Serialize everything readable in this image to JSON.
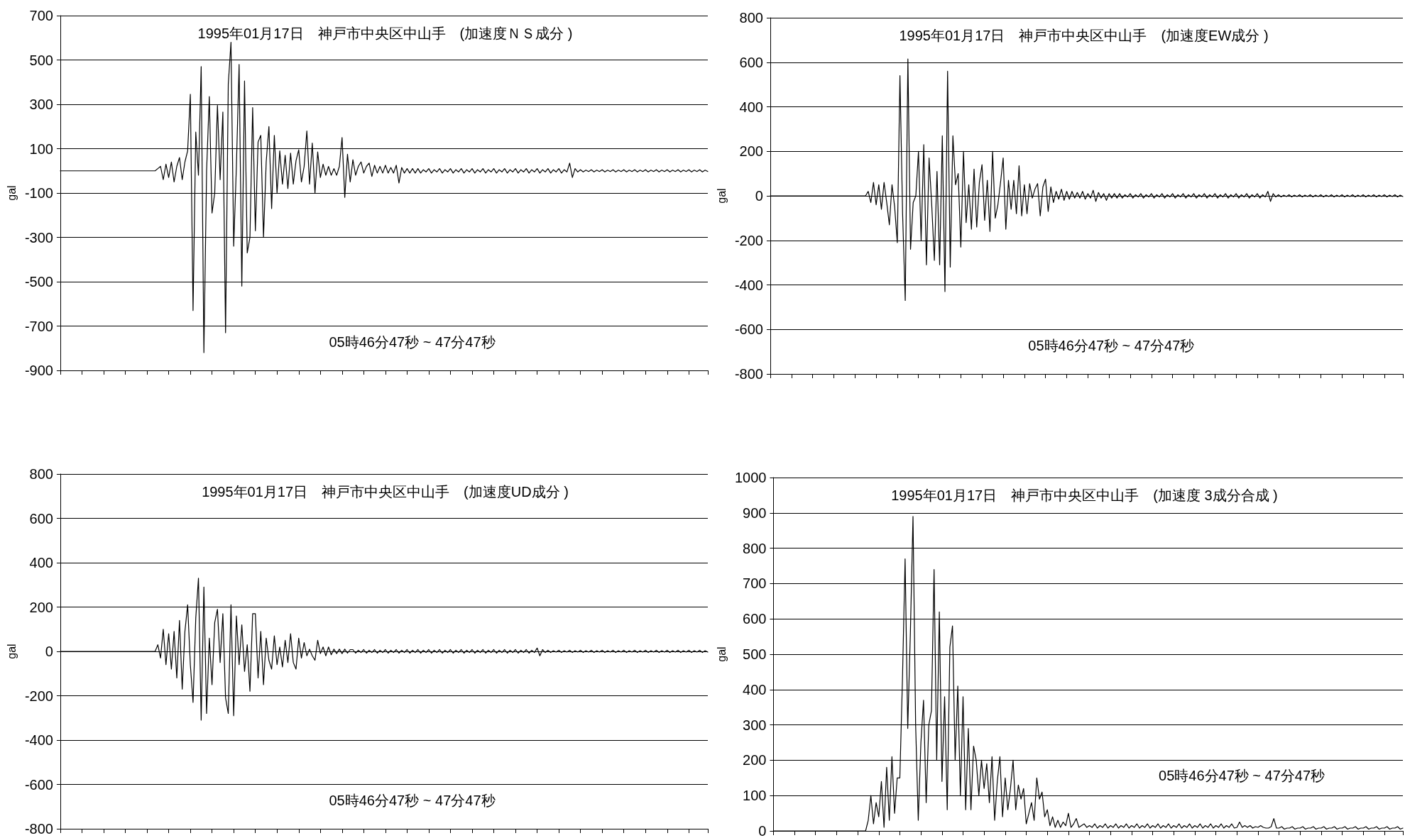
{
  "chart_data": [
    {
      "type": "line",
      "title": "1995年01月17日　神戸市中央区中山手　(加速度ＮＳ成分 )",
      "ylabel": "gal",
      "annotations": [
        "05時46分47秒 ~ 47分47秒"
      ],
      "grid": "y",
      "categories": [
        null,
        null,
        null,
        null,
        null,
        null,
        null,
        null,
        null,
        null,
        null,
        null,
        null,
        null,
        null,
        null,
        null,
        null,
        null,
        null,
        null,
        null,
        null,
        null,
        null,
        null,
        null,
        null,
        null,
        null,
        null,
        null,
        null,
        null,
        null,
        null,
        null,
        null,
        null,
        null,
        null,
        null,
        null,
        null,
        null,
        null,
        null,
        null,
        null,
        null,
        null,
        null,
        null,
        null,
        null,
        null,
        null,
        null,
        null,
        null,
        null,
        null,
        null,
        null,
        null,
        null,
        null,
        null,
        null,
        null,
        null,
        null,
        null,
        null,
        null,
        null,
        null,
        null,
        null,
        null,
        null,
        null,
        null,
        null,
        null,
        null,
        null,
        null,
        null,
        null,
        null,
        null,
        null,
        null,
        null,
        null,
        null,
        null,
        null,
        null,
        null,
        null,
        null,
        null,
        null,
        null,
        null,
        null,
        null,
        null,
        null,
        null,
        null,
        null,
        null,
        null,
        null,
        null,
        null,
        null,
        null,
        null,
        null,
        null,
        null,
        null,
        null,
        null,
        null,
        null,
        null,
        null,
        null,
        null,
        null,
        null,
        null,
        null,
        null,
        null,
        null,
        null,
        null,
        null,
        null,
        null,
        null,
        null,
        null,
        null,
        null,
        null,
        null,
        null,
        null,
        null,
        null,
        null,
        null,
        null,
        null,
        null,
        null,
        null,
        null,
        null,
        null,
        null,
        null,
        null,
        null,
        null,
        null,
        null,
        null,
        null,
        null,
        null,
        null,
        null,
        null,
        null,
        null,
        null,
        null,
        null,
        null,
        null,
        null,
        null,
        null,
        null,
        null,
        null,
        null,
        null,
        null,
        null,
        null,
        null,
        null,
        null,
        null,
        null,
        null,
        null,
        null,
        null,
        null,
        null,
        null,
        null,
        null,
        null,
        null,
        null,
        null,
        null,
        null,
        null,
        null,
        null,
        null,
        null,
        null,
        null,
        null,
        null,
        null,
        null,
        null,
        null,
        null,
        null,
        null,
        null,
        null,
        null,
        null,
        null
      ],
      "ylim": [
        -900,
        700
      ],
      "yticks": [
        -900,
        -700,
        -500,
        -300,
        -100,
        100,
        300,
        500,
        700
      ],
      "series": [
        {
          "color": "#000000",
          "values": [
            0,
            0,
            0,
            0,
            0,
            0,
            0,
            0,
            0,
            0,
            0,
            0,
            0,
            0,
            0,
            0,
            0,
            0,
            0,
            0,
            0,
            0,
            0,
            0,
            0,
            0,
            0,
            0,
            0,
            0,
            0,
            0,
            0,
            0,
            0,
            0,
            10,
            20,
            -40,
            30,
            -30,
            40,
            -50,
            20,
            60,
            -40,
            40,
            90,
            345,
            -630,
            175,
            -20,
            470,
            -820,
            0,
            335,
            -190,
            -100,
            295,
            -40,
            265,
            -730,
            390,
            580,
            -340,
            20,
            480,
            -520,
            405,
            -370,
            -300,
            285,
            -270,
            130,
            160,
            -300,
            40,
            200,
            -170,
            160,
            -100,
            90,
            -60,
            70,
            -80,
            80,
            -60,
            45,
            95,
            -50,
            20,
            180,
            -60,
            125,
            -100,
            85,
            -30,
            30,
            -20,
            20,
            -20,
            10,
            -20,
            20,
            150,
            -120,
            75,
            -50,
            50,
            -20,
            20,
            40,
            -10,
            20,
            35,
            -25,
            25,
            -10,
            20,
            -10,
            25,
            -10,
            15,
            -10,
            25,
            -55,
            15,
            -10,
            10,
            -10,
            10,
            -10,
            10,
            -10,
            5,
            -5,
            10,
            -10,
            5,
            -5,
            10,
            -10,
            5,
            -5,
            10,
            -10,
            5,
            -5,
            10,
            -10,
            5,
            -5,
            10,
            -10,
            5,
            -5,
            10,
            -10,
            5,
            -5,
            10,
            -10,
            5,
            -5,
            10,
            -10,
            5,
            -5,
            10,
            -10,
            5,
            -5,
            10,
            -10,
            5,
            -5,
            10,
            -10,
            5,
            -5,
            10,
            -10,
            5,
            -5,
            10,
            -10,
            5,
            -5,
            35,
            -30,
            10,
            -5,
            5,
            -5,
            3,
            -3,
            5,
            -5,
            3,
            -3,
            5,
            -5,
            3,
            -3,
            5,
            -5,
            3,
            -3,
            5,
            -5,
            3,
            -3,
            5,
            -5,
            3,
            -3,
            5,
            -5,
            3,
            -3,
            5,
            -5,
            3,
            -3,
            5,
            -5,
            3,
            -3,
            5,
            -5,
            3,
            -3,
            5,
            -5,
            3,
            -3,
            5,
            -5,
            3,
            -3
          ]
        }
      ]
    },
    {
      "type": "line",
      "title": "1995年01月17日　神戸市中央区中山手　(加速度EW成分 )",
      "ylabel": "gal",
      "annotations": [
        "05時46分47秒 ~ 47分47秒"
      ],
      "grid": "y",
      "categories": [
        null,
        null,
        null,
        null,
        null,
        null,
        null,
        null,
        null,
        null,
        null,
        null,
        null,
        null,
        null,
        null,
        null,
        null,
        null,
        null,
        null,
        null,
        null,
        null,
        null,
        null,
        null,
        null,
        null,
        null,
        null,
        null,
        null,
        null,
        null,
        null,
        null,
        null,
        null,
        null,
        null,
        null,
        null,
        null,
        null,
        null,
        null,
        null,
        null,
        null,
        null,
        null,
        null,
        null,
        null,
        null,
        null,
        null,
        null,
        null,
        null,
        null,
        null,
        null,
        null,
        null,
        null,
        null,
        null,
        null,
        null,
        null,
        null,
        null,
        null,
        null,
        null,
        null,
        null,
        null,
        null,
        null,
        null,
        null,
        null,
        null,
        null,
        null,
        null,
        null,
        null,
        null,
        null,
        null,
        null,
        null,
        null,
        null,
        null,
        null,
        null,
        null,
        null,
        null,
        null,
        null,
        null,
        null,
        null,
        null,
        null,
        null,
        null,
        null,
        null,
        null,
        null,
        null,
        null,
        null,
        null,
        null,
        null,
        null,
        null,
        null,
        null,
        null,
        null,
        null,
        null,
        null,
        null,
        null,
        null,
        null,
        null,
        null,
        null,
        null,
        null,
        null,
        null,
        null,
        null,
        null,
        null,
        null,
        null,
        null,
        null,
        null,
        null,
        null,
        null,
        null,
        null,
        null,
        null,
        null,
        null,
        null,
        null,
        null,
        null,
        null,
        null,
        null,
        null,
        null,
        null,
        null,
        null,
        null,
        null,
        null,
        null,
        null,
        null,
        null,
        null,
        null,
        null,
        null,
        null,
        null,
        null,
        null,
        null,
        null,
        null,
        null,
        null,
        null,
        null,
        null,
        null,
        null,
        null,
        null,
        null,
        null,
        null,
        null,
        null,
        null,
        null,
        null,
        null,
        null,
        null,
        null,
        null,
        null,
        null,
        null,
        null,
        null,
        null,
        null,
        null,
        null,
        null,
        null,
        null,
        null,
        null,
        null,
        null,
        null,
        null,
        null,
        null,
        null,
        null,
        null,
        null,
        null,
        null,
        null
      ],
      "ylim": [
        -800,
        800
      ],
      "yticks": [
        -800,
        -600,
        -400,
        -200,
        0,
        200,
        400,
        600,
        800
      ],
      "series": [
        {
          "color": "#000000",
          "values": [
            0,
            0,
            0,
            0,
            0,
            0,
            0,
            0,
            0,
            0,
            0,
            0,
            0,
            0,
            0,
            0,
            0,
            0,
            0,
            0,
            0,
            0,
            0,
            0,
            0,
            0,
            0,
            0,
            0,
            0,
            0,
            0,
            0,
            0,
            0,
            0,
            0,
            20,
            -30,
            60,
            -40,
            50,
            -60,
            60,
            -30,
            -130,
            50,
            -50,
            -210,
            540,
            -80,
            -470,
            615,
            -240,
            -30,
            0,
            200,
            -200,
            230,
            -310,
            170,
            -40,
            -290,
            110,
            -310,
            270,
            -430,
            560,
            -320,
            270,
            50,
            100,
            -230,
            200,
            -120,
            50,
            -150,
            120,
            -140,
            60,
            140,
            -110,
            70,
            -160,
            200,
            -100,
            -40,
            60,
            170,
            -150,
            70,
            -60,
            70,
            -80,
            135,
            -90,
            50,
            -80,
            55,
            -10,
            30,
            55,
            -90,
            40,
            75,
            -70,
            40,
            -30,
            20,
            -15,
            30,
            -20,
            20,
            -15,
            20,
            -10,
            15,
            -10,
            20,
            -15,
            10,
            -10,
            25,
            -25,
            15,
            -10,
            10,
            -20,
            10,
            -10,
            10,
            -10,
            10,
            -10,
            5,
            -5,
            10,
            -10,
            5,
            -5,
            10,
            -10,
            5,
            -5,
            10,
            -10,
            5,
            -5,
            10,
            -10,
            5,
            -5,
            10,
            -10,
            5,
            -5,
            10,
            -10,
            5,
            -5,
            10,
            -10,
            5,
            -5,
            10,
            -10,
            5,
            -5,
            10,
            -10,
            5,
            -5,
            10,
            -10,
            5,
            -5,
            10,
            -10,
            5,
            -5,
            10,
            -10,
            5,
            -5,
            10,
            -10,
            5,
            -5,
            20,
            -25,
            10,
            -5,
            5,
            -5,
            3,
            -3,
            5,
            -5,
            3,
            -3,
            5,
            -5,
            3,
            -3,
            5,
            -5,
            3,
            -3,
            5,
            -5,
            3,
            -3,
            5,
            -5,
            3,
            -3,
            5,
            -5,
            3,
            -3,
            5,
            -5,
            3,
            -3,
            5,
            -5,
            3,
            -3,
            5,
            -5,
            3,
            -3,
            5,
            -5,
            3,
            -3,
            5,
            -5,
            3,
            -3
          ]
        }
      ]
    },
    {
      "type": "line",
      "title": "1995年01月17日　神戸市中央区中山手　(加速度UD成分 )",
      "ylabel": "gal",
      "annotations": [
        "05時46分47秒 ~ 47分47秒"
      ],
      "grid": "y",
      "categories": [
        null,
        null,
        null,
        null,
        null,
        null,
        null,
        null,
        null,
        null,
        null,
        null,
        null,
        null,
        null,
        null,
        null,
        null,
        null,
        null,
        null,
        null,
        null,
        null,
        null,
        null,
        null,
        null,
        null,
        null,
        null,
        null,
        null,
        null,
        null,
        null,
        null,
        null,
        null,
        null,
        null,
        null,
        null,
        null,
        null,
        null,
        null,
        null,
        null,
        null,
        null,
        null,
        null,
        null,
        null,
        null,
        null,
        null,
        null,
        null,
        null,
        null,
        null,
        null,
        null,
        null,
        null,
        null,
        null,
        null,
        null,
        null,
        null,
        null,
        null,
        null,
        null,
        null,
        null,
        null,
        null,
        null,
        null,
        null,
        null,
        null,
        null,
        null,
        null,
        null,
        null,
        null,
        null,
        null,
        null,
        null,
        null,
        null,
        null,
        null,
        null,
        null,
        null,
        null,
        null,
        null,
        null,
        null,
        null,
        null,
        null,
        null,
        null,
        null,
        null,
        null,
        null,
        null,
        null,
        null,
        null,
        null,
        null,
        null,
        null,
        null,
        null,
        null,
        null,
        null,
        null,
        null,
        null,
        null,
        null,
        null,
        null,
        null,
        null,
        null,
        null,
        null,
        null,
        null,
        null,
        null,
        null,
        null,
        null,
        null,
        null,
        null,
        null,
        null,
        null,
        null,
        null,
        null,
        null,
        null,
        null,
        null,
        null,
        null,
        null,
        null,
        null,
        null,
        null,
        null,
        null,
        null,
        null,
        null,
        null,
        null,
        null,
        null,
        null,
        null,
        null,
        null,
        null,
        null,
        null,
        null,
        null,
        null,
        null,
        null,
        null,
        null,
        null,
        null,
        null,
        null,
        null,
        null,
        null,
        null,
        null,
        null,
        null,
        null,
        null,
        null,
        null,
        null,
        null,
        null,
        null,
        null,
        null,
        null,
        null,
        null,
        null,
        null,
        null,
        null,
        null,
        null,
        null,
        null,
        null,
        null,
        null,
        null,
        null,
        null,
        null,
        null,
        null,
        null,
        null,
        null,
        null,
        null,
        null,
        null
      ],
      "ylim": [
        -800,
        800
      ],
      "yticks": [
        -800,
        -600,
        -400,
        -200,
        0,
        200,
        400,
        600,
        800
      ],
      "series": [
        {
          "color": "#000000",
          "values": [
            0,
            0,
            0,
            0,
            0,
            0,
            0,
            0,
            0,
            0,
            0,
            0,
            0,
            0,
            0,
            0,
            0,
            0,
            0,
            0,
            0,
            0,
            0,
            0,
            0,
            0,
            0,
            0,
            0,
            0,
            0,
            0,
            0,
            0,
            0,
            0,
            30,
            -30,
            100,
            -60,
            80,
            -80,
            90,
            -120,
            140,
            -170,
            90,
            210,
            -60,
            -230,
            150,
            330,
            -310,
            290,
            -280,
            60,
            -150,
            130,
            190,
            -50,
            170,
            -210,
            -280,
            210,
            -290,
            160,
            -60,
            120,
            -90,
            30,
            -180,
            170,
            170,
            -120,
            90,
            -150,
            60,
            -40,
            -80,
            70,
            -60,
            20,
            -70,
            50,
            -50,
            80,
            -50,
            -80,
            60,
            -30,
            40,
            -20,
            10,
            -20,
            -40,
            50,
            -10,
            20,
            -20,
            20,
            -15,
            10,
            -10,
            10,
            -10,
            10,
            -8,
            8,
            8,
            -8,
            5,
            -5,
            8,
            -8,
            5,
            -5,
            8,
            -8,
            5,
            -5,
            8,
            -8,
            5,
            -5,
            8,
            -8,
            5,
            -5,
            8,
            -8,
            5,
            -5,
            8,
            -8,
            5,
            -5,
            8,
            -8,
            5,
            -5,
            8,
            -8,
            5,
            -5,
            8,
            -8,
            5,
            -5,
            8,
            -8,
            5,
            -5,
            8,
            -8,
            5,
            -5,
            8,
            -8,
            5,
            -5,
            8,
            -8,
            5,
            -5,
            8,
            -8,
            5,
            -5,
            8,
            -8,
            5,
            -5,
            8,
            -8,
            5,
            -5,
            15,
            -20,
            8,
            -5,
            5,
            -5,
            3,
            -3,
            5,
            -5,
            3,
            -3,
            5,
            -5,
            3,
            -3,
            5,
            -5,
            3,
            -3,
            5,
            -5,
            3,
            -3,
            5,
            -5,
            3,
            -3,
            5,
            -5,
            3,
            -3,
            5,
            -5,
            3,
            -3,
            5,
            -5,
            3,
            -3,
            5,
            -5,
            3,
            -3,
            5,
            -5,
            3,
            -3,
            5,
            -5,
            3,
            -3,
            5,
            -5,
            3,
            -3,
            5,
            -5,
            3,
            -3,
            5,
            -5,
            3,
            -3
          ]
        }
      ]
    },
    {
      "type": "line",
      "title": "1995年01月17日　神戸市中央区中山手　(加速度 3成分合成 )",
      "ylabel": "gal",
      "annotations": [
        "05時46分47秒 ~ 47分47秒"
      ],
      "grid": "y",
      "categories": [
        null,
        null,
        null,
        null,
        null,
        null,
        null,
        null,
        null,
        null,
        null,
        null,
        null,
        null,
        null,
        null,
        null,
        null,
        null,
        null,
        null,
        null,
        null,
        null,
        null,
        null,
        null,
        null,
        null,
        null,
        null,
        null,
        null,
        null,
        null,
        null,
        null,
        null,
        null,
        null,
        null,
        null,
        null,
        null,
        null,
        null,
        null,
        null,
        null,
        null,
        null,
        null,
        null,
        null,
        null,
        null,
        null,
        null,
        null,
        null,
        null,
        null,
        null,
        null,
        null,
        null,
        null,
        null,
        null,
        null,
        null,
        null,
        null,
        null,
        null,
        null,
        null,
        null,
        null,
        null,
        null,
        null,
        null,
        null,
        null,
        null,
        null,
        null,
        null,
        null,
        null,
        null,
        null,
        null,
        null,
        null,
        null,
        null,
        null,
        null,
        null,
        null,
        null,
        null,
        null,
        null,
        null,
        null,
        null,
        null,
        null,
        null,
        null,
        null,
        null,
        null,
        null,
        null,
        null,
        null,
        null,
        null,
        null,
        null,
        null,
        null,
        null,
        null,
        null,
        null,
        null,
        null,
        null,
        null,
        null,
        null,
        null,
        null,
        null,
        null,
        null,
        null,
        null,
        null,
        null,
        null,
        null,
        null,
        null,
        null,
        null,
        null,
        null,
        null,
        null,
        null,
        null,
        null,
        null,
        null,
        null,
        null,
        null,
        null,
        null,
        null,
        null,
        null,
        null,
        null,
        null,
        null,
        null,
        null,
        null,
        null,
        null,
        null,
        null,
        null,
        null,
        null,
        null,
        null,
        null,
        null,
        null,
        null,
        null,
        null,
        null,
        null,
        null,
        null,
        null,
        null,
        null,
        null,
        null,
        null,
        null,
        null,
        null,
        null,
        null,
        null,
        null,
        null,
        null,
        null,
        null,
        null,
        null,
        null,
        null,
        null,
        null,
        null,
        null,
        null,
        null,
        null,
        null,
        null,
        null,
        null,
        null,
        null,
        null,
        null,
        null,
        null,
        null,
        null,
        null,
        null,
        null,
        null,
        null,
        null
      ],
      "ylim": [
        0,
        1000
      ],
      "yticks": [
        0,
        100,
        200,
        300,
        400,
        500,
        600,
        700,
        800,
        900,
        1000
      ],
      "series": [
        {
          "color": "#000000",
          "values": [
            0,
            0,
            0,
            0,
            0,
            0,
            0,
            0,
            0,
            0,
            0,
            0,
            0,
            0,
            0,
            0,
            0,
            0,
            0,
            0,
            0,
            0,
            0,
            0,
            0,
            0,
            0,
            0,
            0,
            0,
            0,
            0,
            0,
            0,
            0,
            0,
            30,
            100,
            20,
            80,
            40,
            140,
            10,
            180,
            30,
            210,
            50,
            150,
            150,
            430,
            770,
            290,
            560,
            890,
            300,
            30,
            250,
            370,
            80,
            300,
            340,
            740,
            200,
            620,
            140,
            380,
            60,
            520,
            580,
            200,
            410,
            100,
            380,
            60,
            290,
            60,
            240,
            200,
            100,
            200,
            120,
            190,
            80,
            210,
            30,
            140,
            210,
            40,
            150,
            60,
            120,
            200,
            60,
            130,
            90,
            120,
            20,
            50,
            80,
            30,
            150,
            90,
            110,
            40,
            60,
            15,
            40,
            10,
            30,
            10,
            25,
            15,
            50,
            10,
            20,
            35,
            10,
            15,
            20,
            10,
            15,
            10,
            20,
            8,
            15,
            10,
            20,
            8,
            15,
            10,
            20,
            8,
            15,
            10,
            20,
            8,
            15,
            10,
            20,
            8,
            15,
            10,
            20,
            8,
            15,
            10,
            20,
            8,
            15,
            10,
            20,
            8,
            15,
            10,
            20,
            8,
            15,
            10,
            20,
            8,
            15,
            10,
            20,
            8,
            15,
            10,
            20,
            8,
            15,
            10,
            20,
            8,
            15,
            10,
            20,
            8,
            10,
            25,
            10,
            15,
            10,
            15,
            8,
            12,
            10,
            15,
            10,
            8,
            8,
            12,
            35,
            8,
            8,
            12,
            5,
            8,
            8,
            12,
            5,
            8,
            8,
            12,
            5,
            8,
            8,
            12,
            5,
            8,
            8,
            12,
            5,
            8,
            8,
            12,
            5,
            8,
            8,
            12,
            5,
            8,
            8,
            12,
            5,
            8,
            8,
            12,
            5,
            8,
            8,
            12,
            5,
            8,
            8,
            12,
            5,
            8,
            8,
            12,
            5,
            8
          ]
        }
      ]
    }
  ]
}
